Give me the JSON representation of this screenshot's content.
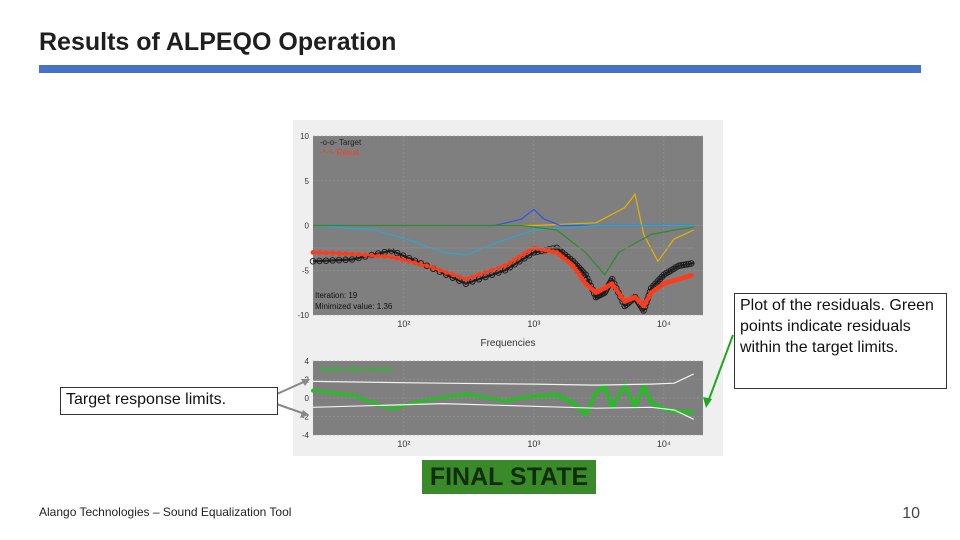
{
  "slide": {
    "title": "Results of ALPEQO Operation",
    "footer": "Alango Technologies – Sound Equalization Tool",
    "page_number": "10",
    "final_state": "FINAL STATE",
    "accent_color": "#4472c4"
  },
  "callouts": {
    "left": "Target response limits.",
    "right": "Plot of the residuals. Green points indicate residuals within the target limits."
  },
  "chart_data": [
    {
      "type": "line",
      "title": "",
      "xlabel": "Frequencies",
      "ylabel": "",
      "x_scale": "log",
      "xlim": [
        20,
        20000
      ],
      "ylim": [
        -10,
        10
      ],
      "y_ticks": [
        "10",
        "5",
        "0",
        "-5",
        "-10"
      ],
      "x_ticks": [
        "10²",
        "10³",
        "10⁴"
      ],
      "grid": true,
      "legend": {
        "position": "top-left",
        "entries": [
          "-o-o- Target",
          "-*-*- Result"
        ]
      },
      "annotations": [
        "Iteration: 19",
        "Minimized value: 1.36"
      ],
      "series": [
        {
          "name": "Target",
          "color": "#222222",
          "x": [
            20,
            40,
            80,
            150,
            300,
            600,
            1000,
            1500,
            2000,
            2500,
            3000,
            3500,
            4000,
            5000,
            6000,
            7000,
            8000,
            10000,
            13000,
            17000
          ],
          "y": [
            -4,
            -3.8,
            -2.8,
            -4.5,
            -6.5,
            -5,
            -3,
            -2.5,
            -4,
            -5.5,
            -8,
            -7.5,
            -6,
            -9,
            -8,
            -9.5,
            -7,
            -5.5,
            -4.5,
            -4.2
          ]
        },
        {
          "name": "Result",
          "color": "#ff3b1a",
          "x": [
            20,
            40,
            80,
            150,
            300,
            600,
            1000,
            1500,
            2000,
            2500,
            3000,
            3500,
            4000,
            5000,
            6000,
            7000,
            8000,
            10000,
            13000,
            17000
          ],
          "y": [
            -3,
            -3.2,
            -3.5,
            -4.5,
            -6,
            -4.5,
            -2.5,
            -3,
            -4.5,
            -6.5,
            -7.5,
            -7,
            -6.5,
            -8.5,
            -8,
            -9,
            -7.5,
            -6.5,
            -6,
            -5.5
          ]
        },
        {
          "name": "",
          "color": "#e0b400",
          "x": [
            20,
            100,
            1000,
            3000,
            5000,
            6000,
            7000,
            9000,
            12000,
            17000
          ],
          "y": [
            0,
            0,
            0,
            0.3,
            2,
            3.5,
            -1,
            -4,
            -1.5,
            -0.5
          ]
        },
        {
          "name": "",
          "color": "#2e56e6",
          "x": [
            20,
            500,
            800,
            1000,
            1200,
            1600,
            3000,
            17000
          ],
          "y": [
            0,
            0,
            0.7,
            1.8,
            0.7,
            0,
            0,
            0
          ]
        },
        {
          "name": "",
          "color": "#2aa6d6",
          "x": [
            20,
            60,
            120,
            200,
            300,
            500,
            1000,
            3000,
            17000
          ],
          "y": [
            0,
            -0.5,
            -1.8,
            -3,
            -3.3,
            -2,
            -0.5,
            0,
            0
          ]
        },
        {
          "name": "",
          "color": "#2e8b2e",
          "x": [
            20,
            800,
            1500,
            2500,
            3500,
            4500,
            6000,
            8000,
            12000,
            17000
          ],
          "y": [
            0,
            0,
            -0.5,
            -3,
            -5.5,
            -3,
            -2,
            -1,
            -0.5,
            -0.2
          ]
        },
        {
          "name": "",
          "color": "#888888",
          "x": [
            20,
            1000,
            3000,
            17000
          ],
          "y": [
            -2.5,
            -2.5,
            -2.5,
            -2.5
          ]
        }
      ]
    },
    {
      "type": "line",
      "title": "",
      "xlabel": "",
      "ylabel": "",
      "x_scale": "log",
      "xlim": [
        20,
        20000
      ],
      "ylim": [
        -4,
        4
      ],
      "y_ticks": [
        "4",
        "2",
        "0",
        "-2",
        "-4"
      ],
      "x_ticks": [
        "10²",
        "10³",
        "10⁴"
      ],
      "grid": true,
      "legend": {
        "position": "top-left",
        "entries": [
          "Inside within bounds"
        ]
      },
      "series": [
        {
          "name": "Inside within bounds",
          "color": "#1fc21f",
          "x": [
            20,
            40,
            80,
            150,
            300,
            600,
            1000,
            1500,
            2000,
            2500,
            3000,
            3500,
            4000,
            5000,
            6000,
            7000,
            8000,
            10000,
            13000,
            17000
          ],
          "y": [
            0.8,
            0.3,
            -1.2,
            -0.2,
            0.4,
            -0.3,
            0.2,
            0.3,
            -0.5,
            -1.8,
            0.5,
            1.3,
            -1,
            1.4,
            -1,
            1.3,
            -0.5,
            -1.2,
            -1.5,
            -1.6
          ]
        },
        {
          "name": "",
          "color": "#f2f2f2",
          "x": [
            20,
            200,
            1000,
            3000,
            8000,
            12000,
            17000
          ],
          "y": [
            1.8,
            1.6,
            1.5,
            1.4,
            1.5,
            1.6,
            2.6
          ]
        },
        {
          "name": "",
          "color": "#f2f2f2",
          "x": [
            20,
            200,
            1000,
            3000,
            8000,
            12000,
            17000
          ],
          "y": [
            -1,
            -0.6,
            -0.9,
            -1.1,
            -1,
            -1.3,
            -2.3
          ]
        }
      ]
    }
  ]
}
